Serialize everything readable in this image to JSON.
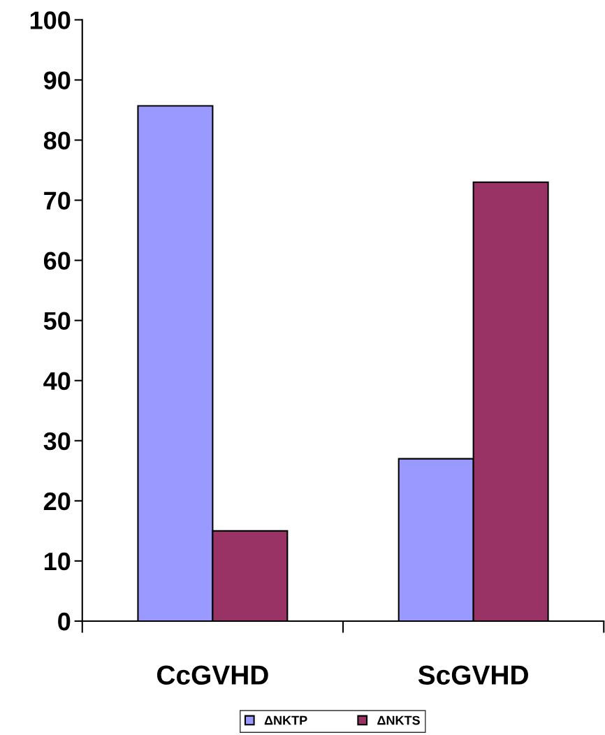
{
  "chart_data": {
    "type": "bar",
    "categories": [
      "CcGVHD",
      "ScGVHD"
    ],
    "series": [
      {
        "name": "ΔNKTP",
        "color": "#9999ff",
        "values": [
          85.7,
          27
        ]
      },
      {
        "name": "ΔNKTS",
        "color": "#993366",
        "values": [
          15,
          73
        ]
      }
    ],
    "ylim": [
      0,
      100
    ],
    "yticks": [
      0,
      10,
      20,
      30,
      40,
      50,
      60,
      70,
      80,
      90,
      100
    ],
    "grid": false,
    "legend": "bottom"
  }
}
